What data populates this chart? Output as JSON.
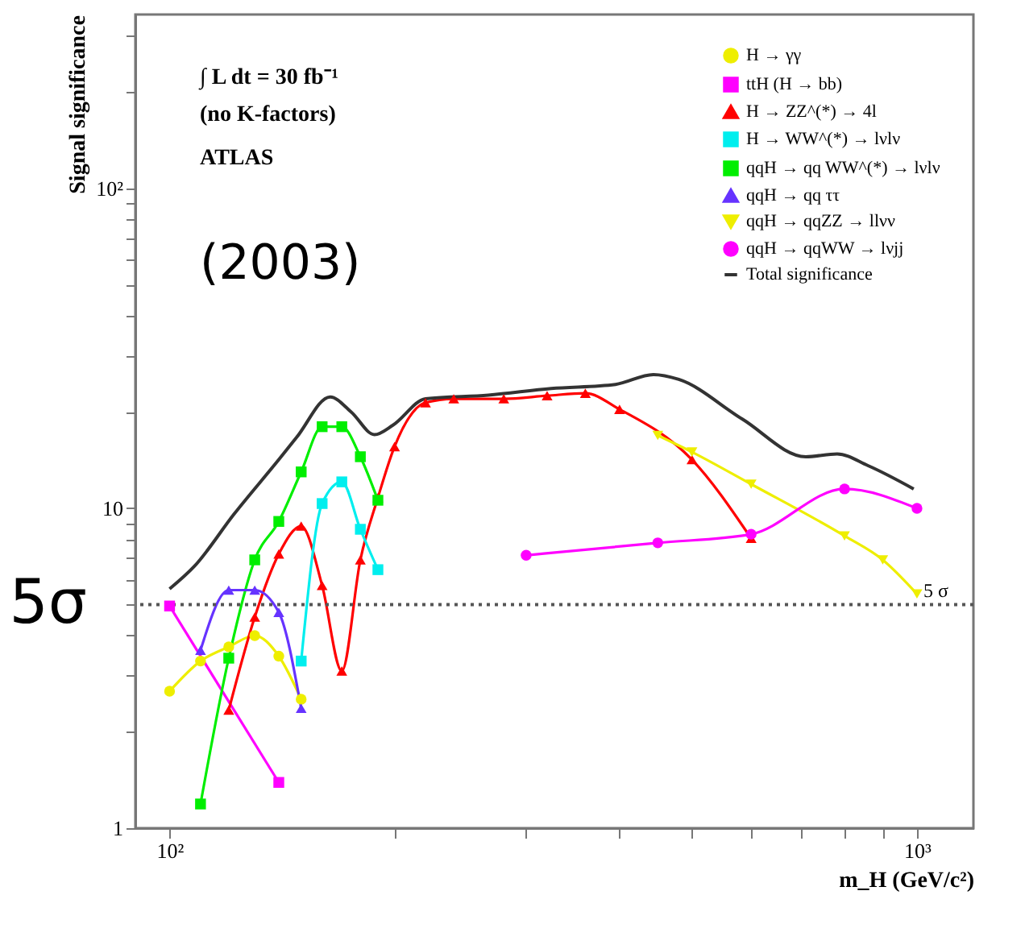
{
  "chart_data": {
    "type": "line",
    "xlabel": "m_H (GeV/c²)",
    "ylabel": "Signal significance",
    "log": "xy",
    "xlim": [
      90,
      1190
    ],
    "ylim": [
      1,
      350
    ],
    "xticks": [
      {
        "value": 100,
        "label": "10²"
      },
      {
        "value": 200,
        "label": null
      },
      {
        "value": 300,
        "label": null
      },
      {
        "value": 400,
        "label": null
      },
      {
        "value": 500,
        "label": null
      },
      {
        "value": 600,
        "label": null
      },
      {
        "value": 700,
        "label": null
      },
      {
        "value": 800,
        "label": null
      },
      {
        "value": 900,
        "label": null
      },
      {
        "value": 1000,
        "label": "10³"
      }
    ],
    "yticks": [
      1,
      {
        "value": 2,
        "label": null
      },
      {
        "value": 3,
        "label": null
      },
      {
        "value": 4,
        "label": null
      },
      {
        "value": 5,
        "label": null
      },
      {
        "value": 6,
        "label": null
      },
      {
        "value": 7,
        "label": null
      },
      {
        "value": 8,
        "label": null
      },
      {
        "value": 9,
        "label": null
      },
      10,
      {
        "value": 20,
        "label": null
      },
      {
        "value": 30,
        "label": null
      },
      {
        "value": 40,
        "label": null
      },
      {
        "value": 50,
        "label": null
      },
      {
        "value": 60,
        "label": null
      },
      {
        "value": 70,
        "label": null
      },
      {
        "value": 80,
        "label": null
      },
      {
        "value": 90,
        "label": null
      },
      {
        "value": 100,
        "label": "10²"
      },
      {
        "value": 200,
        "label": null
      },
      {
        "value": 300,
        "label": null
      }
    ],
    "grid": false,
    "legend": "top right",
    "line_style": "solid",
    "series": [
      {
        "name": "H → γγ",
        "color": "#eeee00",
        "marker": "circle",
        "x": [
          100,
          110,
          120,
          130,
          140,
          150
        ],
        "values": [
          2.68,
          3.33,
          3.69,
          4.0,
          3.45,
          2.53
        ]
      },
      {
        "name": "ttH (H → bb)",
        "color": "#ff00ff",
        "marker": "square",
        "x": [
          100,
          140
        ],
        "values": [
          4.95,
          1.39
        ]
      },
      {
        "name": "H → ZZ^(*) → 4l",
        "color": "#ff0000",
        "marker": "triangle",
        "x": [
          120,
          130,
          140,
          150,
          160,
          170,
          180,
          190,
          200,
          220,
          240,
          280,
          320,
          360,
          400,
          500,
          600
        ],
        "values": [
          2.34,
          4.57,
          7.2,
          8.8,
          5.74,
          3.1,
          6.9,
          10.8,
          15.6,
          21.4,
          22.0,
          22.0,
          22.5,
          22.9,
          20.4,
          14.2,
          8.06
        ]
      },
      {
        "name": "H → WW^(*) → lνlν",
        "color": "#00eeee",
        "marker": "square",
        "x": [
          150,
          160,
          170,
          180,
          190
        ],
        "values": [
          3.33,
          10.35,
          12.1,
          8.6,
          6.43
        ]
      },
      {
        "name": "qqH → qq WW^(*) → lνlν",
        "color": "#00ee00",
        "marker": "square",
        "x": [
          110,
          120,
          130,
          140,
          150,
          160,
          170,
          180,
          190
        ],
        "values": [
          1.19,
          3.4,
          6.9,
          9.1,
          13.0,
          18.0,
          18.0,
          14.5,
          10.6
        ]
      },
      {
        "name": "qqH → qq ττ",
        "color": "#6633ff",
        "marker": "triangle",
        "x": [
          110,
          120,
          130,
          140,
          150
        ],
        "values": [
          3.6,
          5.55,
          5.55,
          4.73,
          2.37
        ]
      },
      {
        "name": "qqH → qqZZ → llνν",
        "color": "#eeee00",
        "marker": "triangle-down",
        "x": [
          450,
          500,
          600,
          800,
          900,
          1000
        ],
        "values": [
          16.9,
          15.0,
          11.9,
          8.2,
          6.9,
          5.4
        ]
      },
      {
        "name": "qqH → qqWW → lνjj",
        "color": "#ff00ff",
        "marker": "circle",
        "x": [
          300,
          450,
          600,
          800,
          1000
        ],
        "values": [
          7.13,
          7.8,
          8.3,
          11.5,
          10.0
        ]
      },
      {
        "name": "Total significance",
        "color": "#333333",
        "marker": "none",
        "x": [
          100,
          108,
          122,
          140,
          148,
          164,
          175,
          188,
          199,
          220,
          267,
          324,
          395,
          444,
          480,
          584,
          710,
          782,
          860,
          990
        ],
        "values": [
          5.6,
          6.6,
          9.6,
          14.2,
          16.7,
          22.3,
          20.0,
          17.0,
          18.2,
          22.0,
          22.6,
          23.7,
          24.4,
          26.2,
          25.3,
          19.0,
          14.5,
          14.8,
          13.6,
          11.5
        ]
      }
    ],
    "ref_lines": [
      {
        "axis": "y",
        "value": 5,
        "label": "5σ",
        "color": "#555555",
        "line_style": "dotted"
      }
    ],
    "annotations": [
      "∫ L dt = 30 fb⁻¹",
      "(no K-factors)",
      "ATLAS",
      "(2003)",
      {
        "text": "5 σ",
        "x": 1060,
        "y": 5
      }
    ]
  }
}
